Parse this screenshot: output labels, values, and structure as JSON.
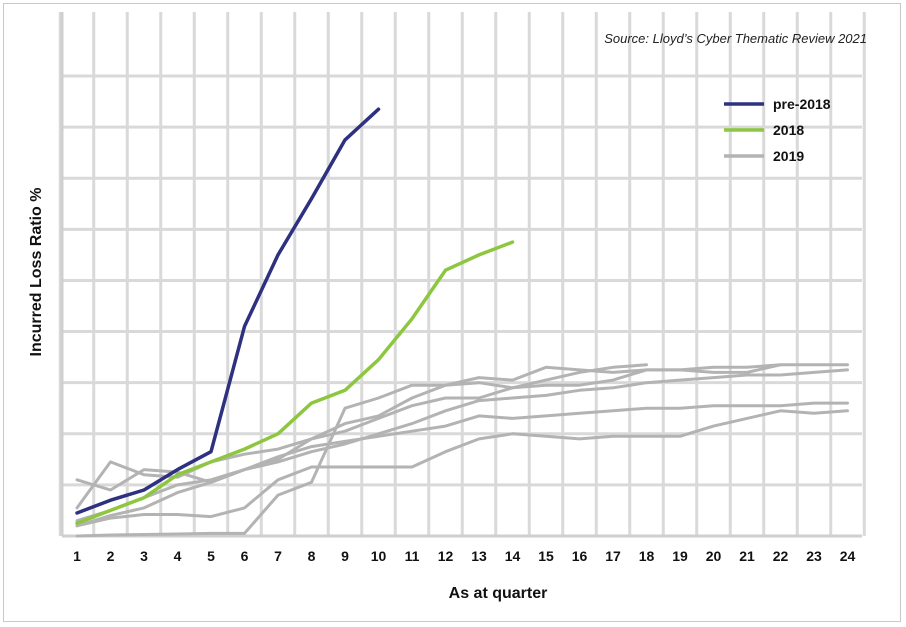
{
  "chart_data": {
    "type": "line",
    "source_note": "Source: Lloyd’s Cyber Thematic Review 2021",
    "xlabel": "As at quarter",
    "ylabel": "Incurred Loss Ratio %",
    "x_ticks": [
      "1",
      "2",
      "3",
      "4",
      "5",
      "6",
      "7",
      "8",
      "9",
      "10",
      "11",
      "12",
      "13",
      "14",
      "15",
      "16",
      "17",
      "18",
      "19",
      "20",
      "21",
      "22",
      "23",
      "24"
    ],
    "xlim": [
      1,
      24
    ],
    "ylim": [
      0,
      9
    ],
    "y_tick_labels_shown": false,
    "grid": true,
    "legend_position": "top-right",
    "legend": [
      {
        "label": "pre-2018",
        "color": "#2e3180"
      },
      {
        "label": "2018",
        "color": "#8dc63f"
      },
      {
        "label": "2019",
        "color": "#b3b3b3"
      }
    ],
    "series": [
      {
        "group": "2019",
        "color": "#b3b3b3",
        "x": [
          1,
          2,
          3,
          4,
          5,
          6,
          7,
          8,
          9,
          10,
          11,
          12,
          13,
          14,
          15,
          16,
          17,
          18,
          19,
          20,
          21,
          22
        ],
        "y": [
          1.1,
          0.9,
          1.3,
          1.25,
          1.05,
          1.3,
          1.5,
          1.9,
          2.2,
          2.35,
          2.7,
          2.95,
          3.1,
          3.05,
          3.3,
          3.25,
          3.2,
          3.25,
          3.25,
          3.2,
          3.2,
          3.35
        ]
      },
      {
        "group": "2019",
        "color": "#b3b3b3",
        "x": [
          1,
          2,
          3,
          4,
          5,
          6,
          7,
          8,
          9,
          10,
          11,
          12,
          13,
          14,
          15,
          16,
          17,
          18
        ],
        "y": [
          0.55,
          1.45,
          1.2,
          1.15,
          1.45,
          1.6,
          1.7,
          1.9,
          2.05,
          2.3,
          2.55,
          2.7,
          2.7,
          2.9,
          3.05,
          3.2,
          3.3,
          3.35
        ]
      },
      {
        "group": "2019",
        "color": "#b3b3b3",
        "x": [
          1,
          2,
          3,
          4,
          5,
          6,
          7,
          8,
          9,
          10,
          11,
          12,
          13,
          14,
          15,
          16,
          17,
          18,
          19,
          20,
          21,
          22,
          23,
          24
        ],
        "y": [
          0.3,
          0.5,
          0.75,
          1.0,
          1.1,
          1.3,
          1.45,
          1.65,
          1.8,
          2.0,
          2.2,
          2.45,
          2.65,
          2.7,
          2.75,
          2.85,
          2.9,
          3.0,
          3.05,
          3.1,
          3.15,
          3.15,
          3.2,
          3.25
        ]
      },
      {
        "group": "2019",
        "color": "#b3b3b3",
        "x": [
          1,
          2,
          3,
          4,
          5,
          6,
          7,
          8,
          9,
          10,
          11,
          12,
          13,
          14,
          15,
          16,
          17,
          18,
          19,
          20,
          21,
          22,
          23,
          24
        ],
        "y": [
          0.2,
          0.4,
          0.55,
          0.85,
          1.05,
          1.3,
          1.55,
          1.75,
          1.85,
          1.95,
          2.05,
          2.15,
          2.35,
          2.3,
          2.35,
          2.4,
          2.45,
          2.5,
          2.5,
          2.55,
          2.55,
          2.55,
          2.6,
          2.6
        ]
      },
      {
        "group": "2019",
        "color": "#b3b3b3",
        "x": [
          1,
          2,
          3,
          4,
          5,
          6,
          7,
          8,
          9,
          10,
          11,
          12,
          13,
          14,
          15,
          16,
          17,
          18,
          19,
          20,
          21,
          22,
          23,
          24
        ],
        "y": [
          0.2,
          0.35,
          0.42,
          0.42,
          0.38,
          0.55,
          1.1,
          1.35,
          1.35,
          1.35,
          1.35,
          1.65,
          1.9,
          2.0,
          1.95,
          1.9,
          1.95,
          1.95,
          1.95,
          2.15,
          2.3,
          2.45,
          2.4,
          2.45
        ]
      },
      {
        "group": "2019",
        "color": "#b3b3b3",
        "x": [
          1,
          2,
          3,
          4,
          5,
          6,
          7,
          8,
          9,
          10,
          11,
          12,
          13,
          14,
          15,
          16,
          17,
          18,
          19,
          20,
          21,
          22,
          23,
          24
        ],
        "y": [
          0.0,
          0.02,
          0.03,
          0.04,
          0.05,
          0.05,
          0.8,
          1.05,
          2.5,
          2.7,
          2.95,
          2.95,
          3.0,
          2.9,
          2.95,
          2.95,
          3.05,
          3.25,
          3.25,
          3.3,
          3.3,
          3.35,
          3.35,
          3.35
        ]
      },
      {
        "group": "2018",
        "color": "#8dc63f",
        "x": [
          1,
          2,
          3,
          4,
          5,
          6,
          7,
          8,
          9,
          10,
          11,
          12,
          13,
          14
        ],
        "y": [
          0.25,
          0.5,
          0.75,
          1.2,
          1.45,
          1.7,
          2.0,
          2.6,
          2.85,
          3.45,
          4.25,
          5.2,
          5.5,
          5.75
        ]
      },
      {
        "group": "pre-2018",
        "color": "#2e3180",
        "x": [
          1,
          2,
          3,
          4,
          5,
          6,
          7,
          8,
          9,
          10
        ],
        "y": [
          0.45,
          0.7,
          0.9,
          1.3,
          1.65,
          4.1,
          5.5,
          6.6,
          7.75,
          8.35
        ]
      }
    ]
  }
}
